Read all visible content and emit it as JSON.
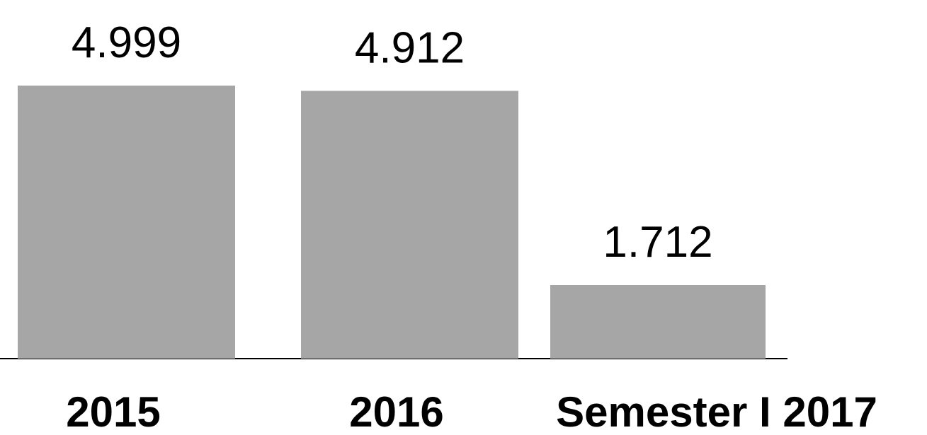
{
  "chart_data": {
    "type": "bar",
    "categories": [
      "2015",
      "2016",
      "Semester I 2017"
    ],
    "values": [
      4.999,
      4.912,
      1.712
    ],
    "color": "#a6a6a6",
    "ylim": [
      0.5,
      5.5
    ]
  }
}
